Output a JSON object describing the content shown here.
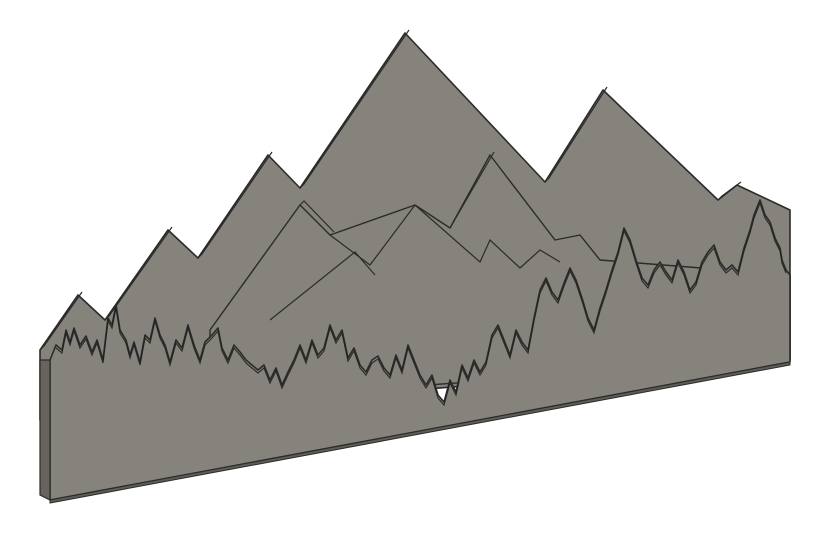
{
  "scene": {
    "subject": "layered-mountain-forest-panel-3d-model",
    "colors": {
      "background": "#ffffff",
      "panel_face": "#85837b",
      "panel_face_back": "#7e7c74",
      "panel_edge": "#2b2b2b",
      "panel_side": "#66645d"
    },
    "layers": [
      {
        "name": "back-mountain-range",
        "kind": "mountain-silhouette"
      },
      {
        "name": "middle-mountain-range",
        "kind": "mountain-silhouette"
      },
      {
        "name": "front-forest-panel",
        "kind": "tree-line-silhouette"
      }
    ]
  }
}
